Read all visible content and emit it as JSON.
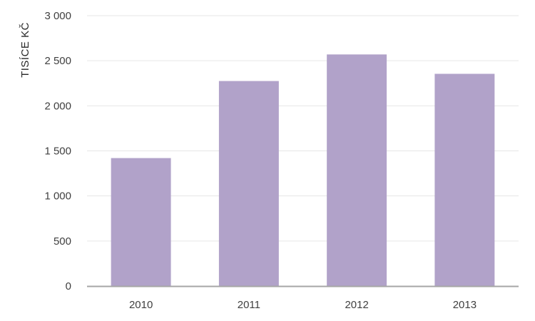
{
  "chart_data": {
    "type": "bar",
    "title": "",
    "xlabel": "",
    "ylabel": "TISÍCE KČ",
    "categories": [
      "2010",
      "2011",
      "2012",
      "2013"
    ],
    "values": [
      1420,
      2275,
      2570,
      2355
    ],
    "ylim": [
      0,
      3000
    ],
    "yticks": [
      0,
      500,
      1000,
      1500,
      2000,
      2500,
      3000
    ],
    "ytick_labels": [
      "0",
      "500",
      "1 000",
      "1 500",
      "2 000",
      "2 500",
      "3 000"
    ],
    "grid": true,
    "legend": "none",
    "bar_color": "#b1a2c9",
    "grid_color": "#e6e6e6",
    "axis_color": "#a6a6a6"
  }
}
